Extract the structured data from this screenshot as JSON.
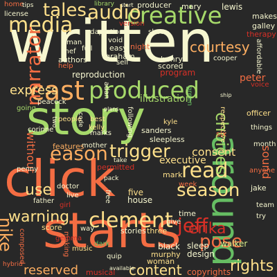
{
  "background": "#282828",
  "palette": [
    "#f46d43",
    "#fdae61",
    "#fee08b",
    "#d9ef8b",
    "#a6d96a",
    "#66bd63",
    "#d73027",
    "#f7f7d0"
  ],
  "words": [
    {
      "text": "written",
      "color": "#f7f7d0"
    },
    {
      "text": "story",
      "color": "#a6d96a"
    },
    {
      "text": "click",
      "color": "#f46d43"
    },
    {
      "text": "starts",
      "color": "#f46d43"
    },
    {
      "text": "around",
      "color": "#66bd63"
    },
    {
      "text": "produced",
      "color": "#a6d96a"
    },
    {
      "text": "creative",
      "color": "#a6d96a"
    },
    {
      "text": "cast",
      "color": "#fdae61"
    },
    {
      "text": "media",
      "color": "#fee08b"
    },
    {
      "text": "narrator",
      "color": "#f46d43"
    },
    {
      "text": "trigger",
      "color": "#fee08b"
    },
    {
      "text": "eason",
      "color": "#fdae61"
    },
    {
      "text": "clement",
      "color": "#fee08b"
    },
    {
      "text": "jeff",
      "color": "#d73027"
    },
    {
      "text": "read",
      "color": "#fee08b"
    },
    {
      "text": "choices",
      "color": "#a6d96a"
    },
    {
      "text": "season",
      "color": "#fee08b"
    },
    {
      "text": "tales",
      "color": "#fee08b"
    },
    {
      "text": "audio",
      "color": "#fee08b"
    },
    {
      "text": "express",
      "color": "#fee08b"
    },
    {
      "text": "courtesy",
      "color": "#fdae61"
    },
    {
      "text": "use",
      "color": "#fee08b"
    },
    {
      "text": "warning",
      "color": "#fee08b"
    },
    {
      "text": "erika",
      "color": "#d73027"
    },
    {
      "text": "nike",
      "color": "#fdae61"
    },
    {
      "text": "pose",
      "color": "#f46d43"
    },
    {
      "text": "rights",
      "color": "#fee08b"
    },
    {
      "text": "content",
      "color": "#fee08b"
    },
    {
      "text": "reserved",
      "color": "#fdae61"
    },
    {
      "text": "illustration",
      "color": "#a6d96a"
    },
    {
      "text": "consent",
      "color": "#fee08b"
    },
    {
      "text": "reproduction",
      "color": "#f7f7d0"
    },
    {
      "text": "program",
      "color": "#d73027"
    },
    {
      "text": "peter",
      "color": "#f46d43"
    },
    {
      "text": "without",
      "color": "#f46d43"
    },
    {
      "text": "sound",
      "color": "#f46d43"
    },
    {
      "text": "executive",
      "color": "#fee08b"
    },
    {
      "text": "copyrights",
      "color": "#f46d43"
    },
    {
      "text": "musical",
      "color": "#d73027"
    },
    {
      "text": "walker",
      "color": "#d9ef8b"
    },
    {
      "text": "sleep",
      "color": "#f7f7d0"
    },
    {
      "text": "design",
      "color": "#f7f7d0"
    },
    {
      "text": "black",
      "color": "#f7f7d0"
    },
    {
      "text": "murphy",
      "color": "#fee08b"
    },
    {
      "text": "woman",
      "color": "#fee08b"
    },
    {
      "text": "stories",
      "color": "#f7f7d0"
    },
    {
      "text": "three",
      "color": "#fee08b"
    },
    {
      "text": "five",
      "color": "#fee08b"
    },
    {
      "text": "house",
      "color": "#f7f7d0"
    },
    {
      "text": "doctor",
      "color": "#f7f7d0"
    },
    {
      "text": "mark",
      "color": "#fee08b"
    },
    {
      "text": "mother",
      "color": "#f7f7d0"
    },
    {
      "text": "features",
      "color": "#fdae61"
    },
    {
      "text": "sleepless",
      "color": "#f7f7d0"
    },
    {
      "text": "sanders",
      "color": "#f7f7d0"
    },
    {
      "text": "kyle",
      "color": "#fee08b"
    },
    {
      "text": "marks",
      "color": "#f7f7d0"
    },
    {
      "text": "kelly",
      "color": "#fee08b"
    },
    {
      "text": "best",
      "color": "#fee08b"
    },
    {
      "text": "corinne",
      "color": "#f7f7d0"
    },
    {
      "text": "peacock",
      "color": "#f7f7d0"
    },
    {
      "text": "going",
      "color": "#a6d96a"
    },
    {
      "text": "people",
      "color": "#fee08b"
    },
    {
      "text": "following",
      "color": "#f7f7d0"
    },
    {
      "text": "respective",
      "color": "#fee08b"
    },
    {
      "text": "officer",
      "color": "#fee08b"
    },
    {
      "text": "things",
      "color": "#f7f7d0"
    },
    {
      "text": "month",
      "color": "#f7f7d0"
    },
    {
      "text": "anyone",
      "color": "#f46d43"
    },
    {
      "text": "jake",
      "color": "#f7f7d0"
    },
    {
      "text": "team",
      "color": "#f7f7d0"
    },
    {
      "text": "try",
      "color": "#f7f7d0"
    },
    {
      "text": "six",
      "color": "#f46d43"
    },
    {
      "text": "week",
      "color": "#f46d43"
    },
    {
      "text": "permitted",
      "color": "#d73027"
    },
    {
      "text": "score",
      "color": "#fee08b"
    },
    {
      "text": "composed",
      "color": "#f46d43"
    },
    {
      "text": "making",
      "color": "#f46d43"
    },
    {
      "text": "father",
      "color": "#f7f7d0"
    },
    {
      "text": "penny",
      "color": "#f7f7d0"
    },
    {
      "text": "girl",
      "color": "#d73027"
    },
    {
      "text": "music",
      "color": "#fee08b"
    },
    {
      "text": "quip",
      "color": "#f7f7d0"
    },
    {
      "text": "dark",
      "color": "#66bd63"
    },
    {
      "text": "time",
      "color": "#f7f7d0"
    },
    {
      "text": "give",
      "color": "#f7f7d0"
    },
    {
      "text": "lewis",
      "color": "#f7f7d0"
    },
    {
      "text": "mary",
      "color": "#f7f7d0"
    },
    {
      "text": "producer",
      "color": "#f7f7d0"
    },
    {
      "text": "makes",
      "color": "#f7f7d0"
    },
    {
      "text": "galley",
      "color": "#f7f7d0"
    },
    {
      "text": "therapy",
      "color": "#d73027"
    },
    {
      "text": "affordable",
      "color": "#f7f7d0"
    },
    {
      "text": "cooper",
      "color": "#f7f7d0"
    },
    {
      "text": "henry",
      "color": "#f7f7d0"
    },
    {
      "text": "scored",
      "color": "#f7f7d0"
    },
    {
      "text": "night",
      "color": "#f46d43"
    },
    {
      "text": "easy",
      "color": "#f7f7d0"
    },
    {
      "text": "full",
      "color": "#f7f7d0"
    },
    {
      "text": "graham",
      "color": "#f7f7d0"
    },
    {
      "text": "self",
      "color": "#f7f7d0"
    },
    {
      "text": "chef",
      "color": "#f7f7d0"
    },
    {
      "text": "man",
      "color": "#f7f7d0"
    },
    {
      "text": "authors",
      "color": "#f7f7d0"
    },
    {
      "text": "help",
      "color": "#f46d43"
    },
    {
      "text": "adaptations",
      "color": "#f7f7d0"
    },
    {
      "text": "show",
      "color": "#f7f7d0"
    },
    {
      "text": "version",
      "color": "#d73027"
    },
    {
      "text": "void",
      "color": "#f7f7d0"
    },
    {
      "text": "license",
      "color": "#f7f7d0"
    },
    {
      "text": "home",
      "color": "#f46d43"
    },
    {
      "text": "tips",
      "color": "#f7f7d0"
    },
    {
      "text": "library",
      "color": "#a6d96a"
    },
    {
      "text": "voice",
      "color": "#d73027"
    },
    {
      "text": "code",
      "color": "#f7f7d0"
    },
    {
      "text": "adan",
      "color": "#f7f7d0"
    },
    {
      "text": "gemma",
      "color": "#d73027"
    },
    {
      "text": "live",
      "color": "#f7f7d0"
    },
    {
      "text": "two",
      "color": "#f7f7d0"
    },
    {
      "text": "take",
      "color": "#f7f7d0"
    },
    {
      "text": "green",
      "color": "#66bd63"
    },
    {
      "text": "free",
      "color": "#f7f7d0"
    },
    {
      "text": "way",
      "color": "#f7f7d0"
    },
    {
      "text": "pack",
      "color": "#f7f7d0"
    },
    {
      "text": "available",
      "color": "#f7f7d0"
    },
    {
      "text": "hybrid",
      "color": "#f46d43"
    },
    {
      "text": "start",
      "color": "#f7f7d0"
    },
    {
      "text": "ship",
      "color": "#f7f7d0"
    },
    {
      "text": "plans",
      "color": "#f7f7d0"
    }
  ]
}
